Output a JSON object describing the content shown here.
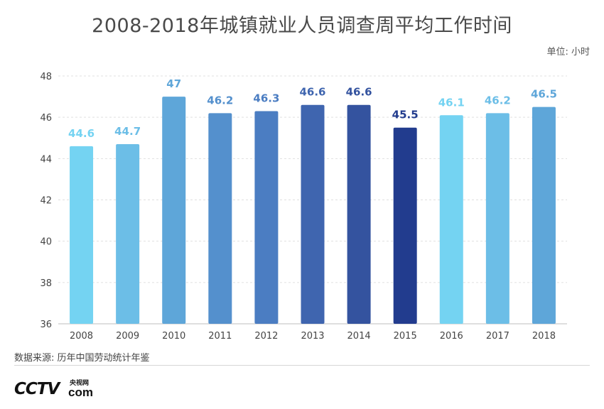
{
  "title": "2008-2018年城镇就业人员调查周平均工作时间",
  "unit_label": "单位: 小时",
  "source": "数据来源: 历年中国劳动统计年鉴",
  "logo": {
    "main": "CCTV",
    "small": "央视网",
    "com": "com"
  },
  "chart_data": {
    "type": "bar",
    "title": "2008-2018年城镇就业人员调查周平均工作时间",
    "xlabel": "",
    "ylabel": "",
    "unit": "单位: 小时",
    "ylim": [
      36,
      48
    ],
    "yticks": [
      36,
      38,
      40,
      42,
      44,
      46,
      48
    ],
    "grid": true,
    "categories": [
      "2008",
      "2009",
      "2010",
      "2011",
      "2012",
      "2013",
      "2014",
      "2015",
      "2016",
      "2017",
      "2018"
    ],
    "values": [
      44.6,
      44.7,
      47,
      46.2,
      46.3,
      46.6,
      46.6,
      45.5,
      46.1,
      46.2,
      46.5
    ],
    "value_labels": [
      "44.6",
      "44.7",
      "47",
      "46.2",
      "46.3",
      "46.6",
      "46.6",
      "45.5",
      "46.1",
      "46.2",
      "46.5"
    ],
    "bar_colors": [
      "#74d3f2",
      "#6cbee7",
      "#5ea6d9",
      "#5490cd",
      "#4b7dc2",
      "#3f65af",
      "#34539f",
      "#223c8e",
      "#74d3f2",
      "#6cbee7",
      "#5ea6d9"
    ],
    "label_colors": [
      "#74d3f2",
      "#6cbee7",
      "#5ea6d9",
      "#5490cd",
      "#4b7dc2",
      "#3f65af",
      "#34539f",
      "#223c8e",
      "#74d3f2",
      "#6cbee7",
      "#5ea6d9"
    ],
    "grid_color": "#e0e0e0",
    "axis_color": "#bfbfbf"
  }
}
